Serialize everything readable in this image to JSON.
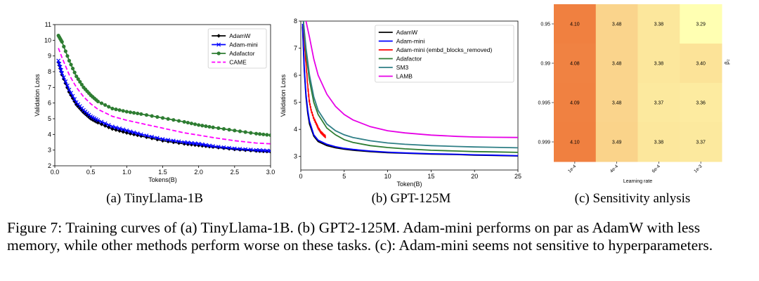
{
  "colors": {
    "adamw": "#000000",
    "adam_mini": "#0000ff",
    "adafactor": "#2e7d32",
    "came": "#ff00ff",
    "adam_mini_embd": "#ff0000",
    "adafactor_gpt": "#2e7d32",
    "sm3": "#2f7f86",
    "lamb": "#e600e6",
    "heat_low": "#ffffb2",
    "heat_high": "#f08040"
  },
  "chart_data": [
    {
      "type": "line",
      "title": "",
      "xlabel": "Tokens(B)",
      "ylabel": "Validation Loss",
      "xlim": [
        0,
        3.0
      ],
      "ylim": [
        2,
        11
      ],
      "xticks": [
        "0.0",
        "0.5",
        "1.0",
        "1.5",
        "2.0",
        "2.5",
        "3.0"
      ],
      "yticks": [
        "2",
        "3",
        "4",
        "5",
        "6",
        "7",
        "8",
        "9",
        "10",
        "11"
      ],
      "legend_position": "top-right",
      "series": [
        {
          "name": "AdamW",
          "color_key": "adamw",
          "marker": "diamond",
          "x": [
            0.05,
            0.1,
            0.2,
            0.3,
            0.4,
            0.5,
            0.6,
            0.8,
            1.0,
            1.2,
            1.5,
            1.8,
            2.0,
            2.2,
            2.5,
            2.8,
            3.0
          ],
          "y": [
            8.6,
            7.8,
            6.7,
            5.9,
            5.4,
            5.0,
            4.75,
            4.35,
            4.1,
            3.9,
            3.6,
            3.4,
            3.3,
            3.2,
            3.05,
            2.95,
            2.9
          ]
        },
        {
          "name": "Adam-mini",
          "color_key": "adam_mini",
          "marker": "x",
          "x": [
            0.05,
            0.1,
            0.2,
            0.3,
            0.4,
            0.5,
            0.6,
            0.8,
            1.0,
            1.2,
            1.5,
            1.8,
            2.0,
            2.2,
            2.5,
            2.8,
            3.0
          ],
          "y": [
            8.7,
            7.9,
            6.85,
            6.05,
            5.55,
            5.15,
            4.9,
            4.5,
            4.25,
            4.0,
            3.7,
            3.5,
            3.4,
            3.25,
            3.1,
            3.0,
            2.95
          ]
        },
        {
          "name": "Adafactor",
          "color_key": "adafactor",
          "marker": "circle",
          "x": [
            0.05,
            0.1,
            0.2,
            0.3,
            0.4,
            0.5,
            0.6,
            0.8,
            1.0,
            1.2,
            1.5,
            1.8,
            2.0,
            2.2,
            2.5,
            2.8,
            3.0
          ],
          "y": [
            10.3,
            9.9,
            8.7,
            7.7,
            7.0,
            6.5,
            6.1,
            5.65,
            5.45,
            5.3,
            5.05,
            4.8,
            4.6,
            4.45,
            4.25,
            4.05,
            3.95
          ]
        },
        {
          "name": "CAME",
          "color_key": "came",
          "marker": "none",
          "dashed": true,
          "x": [
            0.05,
            0.1,
            0.2,
            0.3,
            0.4,
            0.5,
            0.6,
            0.8,
            1.0,
            1.2,
            1.5,
            1.8,
            2.0,
            2.2,
            2.5,
            2.8,
            3.0
          ],
          "y": [
            9.5,
            8.9,
            7.8,
            7.0,
            6.4,
            5.95,
            5.6,
            5.15,
            4.9,
            4.7,
            4.4,
            4.1,
            3.95,
            3.8,
            3.6,
            3.45,
            3.4
          ]
        }
      ]
    },
    {
      "type": "line",
      "title": "",
      "xlabel": "Token(B)",
      "ylabel": "Validation Loss",
      "xlim": [
        0,
        25
      ],
      "ylim": [
        2.5,
        8
      ],
      "xticks": [
        "0",
        "5",
        "10",
        "15",
        "20",
        "25"
      ],
      "yticks": [
        "3",
        "4",
        "5",
        "6",
        "7",
        "8"
      ],
      "legend_position": "top-right",
      "series": [
        {
          "name": "AdamW",
          "color_key": "adamw",
          "x": [
            0.2,
            0.4,
            0.6,
            0.8,
            1.0,
            1.5,
            2,
            3,
            4,
            5,
            6,
            8,
            10,
            12,
            15,
            18,
            20,
            22,
            25
          ],
          "y": [
            7.8,
            6.2,
            5.2,
            4.6,
            4.2,
            3.75,
            3.55,
            3.4,
            3.32,
            3.27,
            3.23,
            3.18,
            3.14,
            3.12,
            3.09,
            3.07,
            3.05,
            3.04,
            3.02
          ]
        },
        {
          "name": "Adam-mini",
          "color_key": "adam_mini",
          "x": [
            0.2,
            0.4,
            0.6,
            0.8,
            1.0,
            1.5,
            2,
            3,
            4,
            5,
            6,
            8,
            10,
            12,
            15,
            18,
            20,
            22,
            25
          ],
          "y": [
            7.9,
            6.3,
            5.3,
            4.7,
            4.3,
            3.8,
            3.6,
            3.45,
            3.36,
            3.3,
            3.26,
            3.2,
            3.16,
            3.13,
            3.1,
            3.08,
            3.06,
            3.05,
            3.03
          ]
        },
        {
          "name": "Adam-mini (embd_blocks_removed)",
          "color_key": "adam_mini_embd",
          "noisy": true,
          "x": [
            0.3,
            0.5,
            0.8,
            1.0,
            1.2,
            1.5,
            1.8,
            2.0,
            2.3,
            2.6,
            2.9
          ],
          "y": [
            8.0,
            6.8,
            5.6,
            5.0,
            4.7,
            4.4,
            4.2,
            4.05,
            3.9,
            3.8,
            3.72
          ]
        },
        {
          "name": "Adafactor",
          "color_key": "adafactor_gpt",
          "x": [
            0.3,
            0.6,
            1.0,
            1.5,
            2,
            3,
            4,
            5,
            6,
            8,
            10,
            12,
            15,
            18,
            20,
            22,
            25
          ],
          "y": [
            8.0,
            6.8,
            5.8,
            5.0,
            4.55,
            4.05,
            3.8,
            3.62,
            3.52,
            3.4,
            3.33,
            3.28,
            3.23,
            3.2,
            3.18,
            3.17,
            3.15
          ]
        },
        {
          "name": "SM3",
          "color_key": "sm3",
          "x": [
            0.3,
            0.6,
            1.0,
            1.5,
            2,
            3,
            4,
            5,
            6,
            8,
            10,
            12,
            15,
            18,
            20,
            22,
            25
          ],
          "y": [
            8.0,
            7.0,
            6.0,
            5.2,
            4.7,
            4.2,
            3.95,
            3.8,
            3.7,
            3.58,
            3.5,
            3.45,
            3.4,
            3.37,
            3.35,
            3.34,
            3.32
          ]
        },
        {
          "name": "LAMB",
          "color_key": "lamb",
          "x": [
            0.6,
            1.0,
            1.5,
            2,
            3,
            4,
            5,
            6,
            8,
            10,
            12,
            15,
            18,
            20,
            22,
            25
          ],
          "y": [
            8.0,
            7.4,
            6.6,
            6.0,
            5.3,
            4.85,
            4.55,
            4.35,
            4.1,
            3.95,
            3.87,
            3.79,
            3.74,
            3.72,
            3.71,
            3.7
          ]
        }
      ]
    },
    {
      "type": "heatmap",
      "title": "",
      "xlabel": "Learning rate",
      "ylabel": "β₂",
      "x_categories": [
        "1e-4",
        "4e-4",
        "6e-4",
        "1e-3"
      ],
      "y_categories": [
        "0.95",
        "0.99",
        "0.995",
        "0.999"
      ],
      "values": [
        [
          4.1,
          3.48,
          3.38,
          3.29
        ],
        [
          4.08,
          3.48,
          3.38,
          3.4
        ],
        [
          4.09,
          3.48,
          3.37,
          3.36
        ],
        [
          4.1,
          3.49,
          3.38,
          3.37
        ]
      ],
      "value_labels": [
        [
          "4.10",
          "3.48",
          "3.38",
          "3.29"
        ],
        [
          "4.08",
          "3.48",
          "3.38",
          "3.40"
        ],
        [
          "4.09",
          "3.48",
          "3.37",
          "3.36"
        ],
        [
          "4.10",
          "3.49",
          "3.38",
          "3.37"
        ]
      ],
      "color_range": [
        3.29,
        4.1
      ]
    }
  ],
  "captions": {
    "a": "(a) TinyLlama-1B",
    "b": "(b) GPT-125M",
    "c": "(c) Sensitivity anlysis"
  },
  "figure_caption": "Figure 7: Training curves of (a) TinyLlama-1B. (b) GPT2-125M. Adam-mini performs on par as AdamW with less memory, while other methods perform worse on these tasks. (c): Adam-mini seems not sensitive to hyperparameters."
}
